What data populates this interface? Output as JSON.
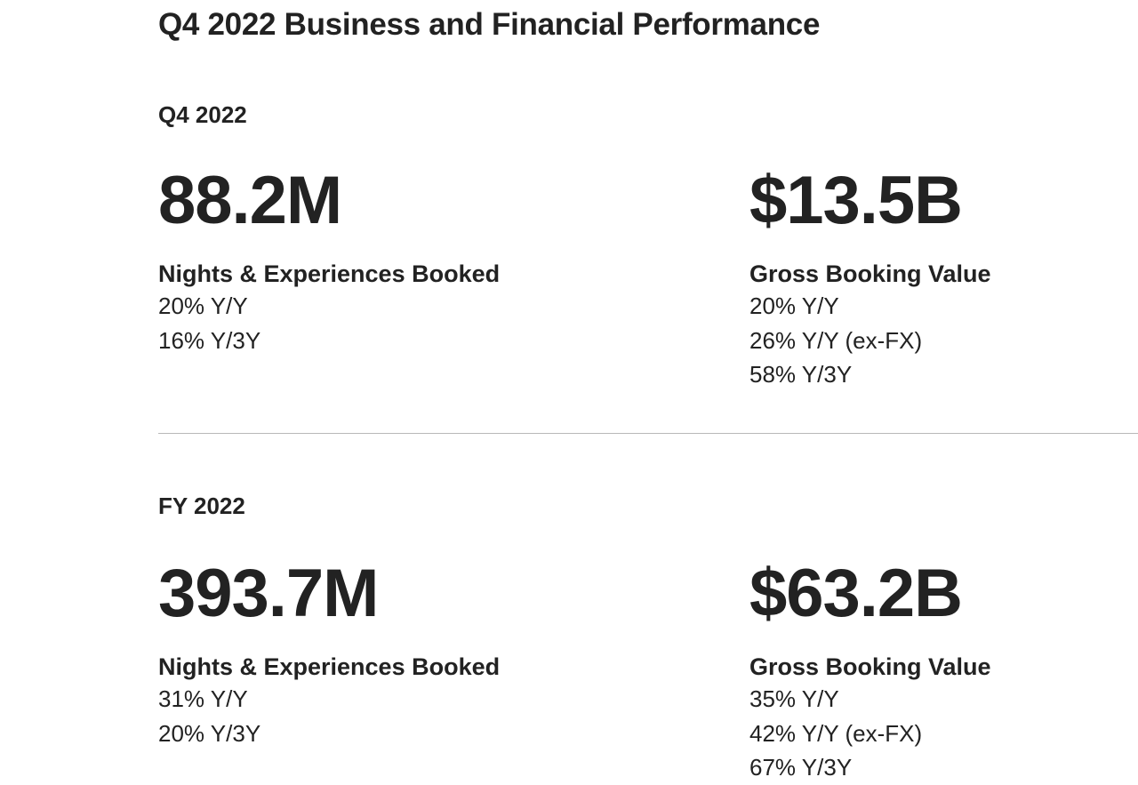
{
  "page_title": "Q4 2022 Business and Financial Performance",
  "sections": [
    {
      "label": "Q4 2022",
      "metrics": [
        {
          "value": "88.2M",
          "label": "Nights & Experiences Booked",
          "stats": [
            "20% Y/Y",
            "16% Y/3Y"
          ]
        },
        {
          "value": "$13.5B",
          "label": "Gross Booking Value",
          "stats": [
            "20% Y/Y",
            "26% Y/Y (ex-FX)",
            "58% Y/3Y"
          ]
        }
      ]
    },
    {
      "label": "FY 2022",
      "metrics": [
        {
          "value": "393.7M",
          "label": "Nights & Experiences Booked",
          "stats": [
            "31% Y/Y",
            "20% Y/3Y"
          ]
        },
        {
          "value": "$63.2B",
          "label": "Gross Booking Value",
          "stats": [
            "35% Y/Y",
            "42% Y/Y (ex-FX)",
            "67% Y/3Y"
          ]
        }
      ]
    }
  ]
}
